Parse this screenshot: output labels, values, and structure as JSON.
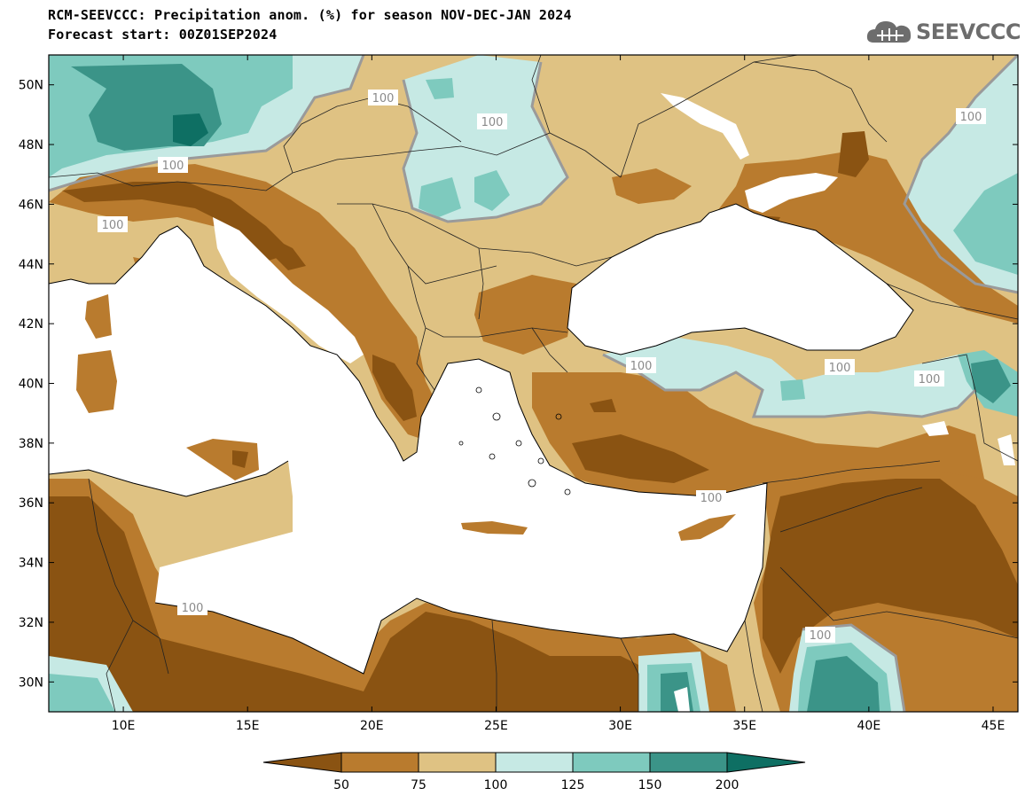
{
  "header": {
    "title": "RCM-SEEVCCC: Precipitation anom. (%) for season NOV-DEC-JAN 2024",
    "subtitle": "Forecast start: 00Z01SEP2024",
    "logo_text": "SEEVCCC",
    "logo_icon": "cloud-icon"
  },
  "axes": {
    "lon_labels": [
      "10E",
      "15E",
      "20E",
      "25E",
      "30E",
      "35E",
      "40E",
      "45E"
    ],
    "lat_labels": [
      "50N",
      "48N",
      "46N",
      "44N",
      "42N",
      "40N",
      "38N",
      "36N",
      "34N",
      "32N",
      "30N"
    ],
    "lon_range": [
      7,
      46
    ],
    "lat_range": [
      29,
      51
    ]
  },
  "contour_labels": [
    "100",
    "100",
    "100",
    "100",
    "100",
    "100",
    "100",
    "100",
    "100",
    "100",
    "100"
  ],
  "legend": {
    "labels": [
      "50",
      "75",
      "100",
      "125",
      "150",
      "200"
    ],
    "colors": [
      "#8a5312",
      "#b97b2e",
      "#dfc283",
      "#c6e9e4",
      "#7ecabe",
      "#3b9488",
      "#0e6f63"
    ]
  },
  "colors": {
    "sea": "#ffffff",
    "very_dry": "#8a5312",
    "dry": "#b97b2e",
    "slightly_dry": "#dfc283",
    "slightly_wet": "#c6e9e4",
    "wet": "#7ecabe",
    "very_wet": "#3b9488",
    "extreme_wet": "#0e6f63",
    "contour_100": "#9a9a9a"
  }
}
